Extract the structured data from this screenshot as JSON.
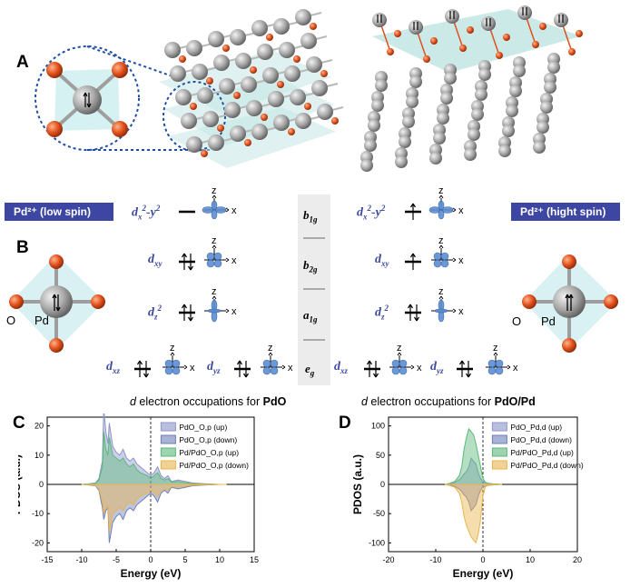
{
  "panels": {
    "A": "A",
    "B": "B",
    "C": "C",
    "D": "D"
  },
  "panelB": {
    "low_spin_tag": "Pd²⁺ (low spin)",
    "high_spin_tag": "Pd²⁺ (hight spin)",
    "orbitals_left": [
      "dx²-y²",
      "dxy",
      "dz²",
      "dxz",
      "dyz"
    ],
    "orbitals_right": [
      "dx²-y²",
      "dxy",
      "dz²",
      "dxz",
      "dyz"
    ],
    "symmetry": [
      "b1g",
      "b2g",
      "a1g",
      "eg"
    ],
    "axis_z": "z",
    "axis_x": "x",
    "atom_O": "O",
    "atom_Pd": "Pd",
    "caption_left_pre": "d",
    "caption_left_mid": " electron occupations for ",
    "caption_left_bold": "PdO",
    "caption_right_pre": "d",
    "caption_right_mid": " electron occupations for ",
    "caption_right_bold": "PdO/Pd"
  },
  "chart_data": [
    {
      "type": "area",
      "panel": "C",
      "xlabel": "Energy (eV)",
      "ylabel": "PDOS (a.u.)",
      "xlim": [
        -15,
        15
      ],
      "ylim": [
        -23,
        23
      ],
      "xticks": [
        -15,
        -10,
        -5,
        0,
        5,
        10,
        15
      ],
      "yticks": [
        -20,
        -10,
        0,
        10,
        20
      ],
      "series": [
        {
          "name": "PdO_O,p (up)",
          "color": "#8e95c9",
          "x": [
            -10,
            -9,
            -8,
            -7.5,
            -7,
            -6.8,
            -6.5,
            -6.2,
            -6,
            -5.5,
            -5,
            -4.5,
            -4,
            -3.5,
            -3,
            -2.5,
            -2,
            -1.5,
            -1,
            -0.5,
            0,
            0.5,
            1,
            1.5,
            2,
            2.5,
            3,
            4,
            5,
            6,
            8,
            10,
            11
          ],
          "y": [
            0,
            0.2,
            0.5,
            2,
            8,
            26,
            18,
            14,
            21,
            13,
            11,
            10,
            12,
            9,
            8,
            9,
            7,
            6,
            5,
            4,
            3,
            4,
            6,
            3,
            2,
            3,
            1,
            1.5,
            1,
            0.5,
            0.2,
            0,
            0
          ]
        },
        {
          "name": "PdO_O,p (down)",
          "color": "#6e7fb8",
          "x": [
            -10,
            -9,
            -8,
            -7.5,
            -7,
            -6.8,
            -6.5,
            -6.2,
            -6,
            -5.5,
            -5,
            -4.5,
            -4,
            -3.5,
            -3,
            -2.5,
            -2,
            -1.5,
            -1,
            -0.5,
            0,
            0.5,
            1,
            1.5,
            2,
            2.5,
            3,
            4,
            5,
            6,
            8,
            10,
            11
          ],
          "y": [
            0,
            -0.2,
            -0.5,
            -2,
            -8,
            -12,
            -9,
            -8,
            -20,
            -13,
            -11,
            -10,
            -12,
            -9,
            -8,
            -9,
            -7,
            -6,
            -5,
            -4,
            -3,
            -4,
            -6,
            -3,
            -2,
            -3,
            -1,
            -1.5,
            -1,
            -0.5,
            -0.2,
            0,
            0
          ]
        },
        {
          "name": "Pd/PdO_O,p (up)",
          "color": "#5cb87a",
          "x": [
            -10,
            -9,
            -8,
            -7.5,
            -7,
            -6.8,
            -6.5,
            -6.2,
            -6,
            -5.5,
            -5,
            -4.5,
            -4,
            -3.5,
            -3,
            -2.5,
            -2,
            -1.5,
            -1,
            -0.5,
            0,
            0.5,
            1,
            1.5,
            2,
            2.5,
            3,
            4,
            5,
            6,
            8,
            10,
            11
          ],
          "y": [
            0,
            0.1,
            0.4,
            1.5,
            6,
            18,
            12,
            10,
            16,
            10,
            9,
            8,
            9,
            7,
            6,
            7,
            5,
            4,
            3.5,
            3,
            2,
            3,
            4,
            2,
            1.5,
            2,
            0.8,
            1,
            0.6,
            0.3,
            0.1,
            0,
            0
          ]
        },
        {
          "name": "Pd/PdO_O,p (down)",
          "color": "#e9b44c",
          "x": [
            -10,
            -9,
            -8,
            -7.5,
            -7,
            -6.8,
            -6.5,
            -6.2,
            -6,
            -5.5,
            -5,
            -4.5,
            -4,
            -3.5,
            -3,
            -2.5,
            -2,
            -1.5,
            -1,
            -0.5,
            0,
            0.5,
            1,
            1.5,
            2,
            2.5,
            3,
            4,
            5,
            6,
            8,
            10,
            11
          ],
          "y": [
            0,
            -0.1,
            -0.4,
            -1.5,
            -6,
            -10,
            -8,
            -7,
            -16,
            -10,
            -9,
            -8,
            -9,
            -7,
            -6,
            -7,
            -5,
            -4,
            -3.5,
            -3,
            -2,
            -3,
            -4,
            -2,
            -1.5,
            -2,
            -0.8,
            -1,
            -0.6,
            -0.3,
            -0.1,
            0,
            0
          ]
        }
      ]
    },
    {
      "type": "area",
      "panel": "D",
      "xlabel": "Energy (eV)",
      "ylabel": "PDOS (a.u.)",
      "xlim": [
        -20,
        20
      ],
      "ylim": [
        -115,
        115
      ],
      "xticks": [
        -20,
        -10,
        0,
        10,
        20
      ],
      "yticks": [
        -100,
        -50,
        0,
        50,
        100
      ],
      "series": [
        {
          "name": "PdO_Pd,d (up)",
          "color": "#8e95c9",
          "x": [
            -8,
            -7,
            -6,
            -5,
            -4.5,
            -4,
            -3.5,
            -3,
            -2.5,
            -2,
            -1.5,
            -1,
            -0.5,
            0,
            0.5,
            1,
            2,
            3,
            4
          ],
          "y": [
            0,
            1,
            3,
            8,
            12,
            18,
            22,
            30,
            45,
            40,
            35,
            20,
            10,
            5,
            3,
            2,
            1,
            0.5,
            0
          ]
        },
        {
          "name": "PdO_Pd,d (down)",
          "color": "#6e7fb8",
          "x": [
            -8,
            -7,
            -6,
            -5,
            -4.5,
            -4,
            -3.5,
            -3,
            -2.5,
            -2,
            -1.5,
            -1,
            -0.5,
            0,
            0.5,
            1,
            2,
            3,
            4
          ],
          "y": [
            0,
            -1,
            -3,
            -8,
            -12,
            -18,
            -22,
            -30,
            -45,
            -40,
            -35,
            -20,
            -10,
            -5,
            -3,
            -2,
            -1,
            -0.5,
            0
          ]
        },
        {
          "name": "Pd/PdO_Pd,d (up)",
          "color": "#5cb87a",
          "x": [
            -8,
            -7,
            -6,
            -5,
            -4.5,
            -4,
            -3.5,
            -3,
            -2.5,
            -2,
            -1.5,
            -1,
            -0.5,
            0,
            0.5,
            1,
            2,
            3,
            4
          ],
          "y": [
            0,
            2,
            5,
            15,
            30,
            60,
            80,
            95,
            90,
            85,
            70,
            50,
            30,
            10,
            4,
            2,
            1,
            0.5,
            0
          ]
        },
        {
          "name": "Pd/PdO_Pd,d (down)",
          "color": "#e9b44c",
          "x": [
            -8,
            -7,
            -6,
            -5,
            -4.5,
            -4,
            -3.5,
            -3,
            -2.5,
            -2,
            -1.5,
            -1,
            -0.5,
            0,
            0.5,
            1,
            2,
            3,
            4
          ],
          "y": [
            0,
            -2,
            -5,
            -15,
            -30,
            -55,
            -70,
            -80,
            -90,
            -95,
            -100,
            -85,
            -60,
            -20,
            -4,
            -2,
            -1,
            -0.5,
            0
          ]
        }
      ]
    }
  ]
}
